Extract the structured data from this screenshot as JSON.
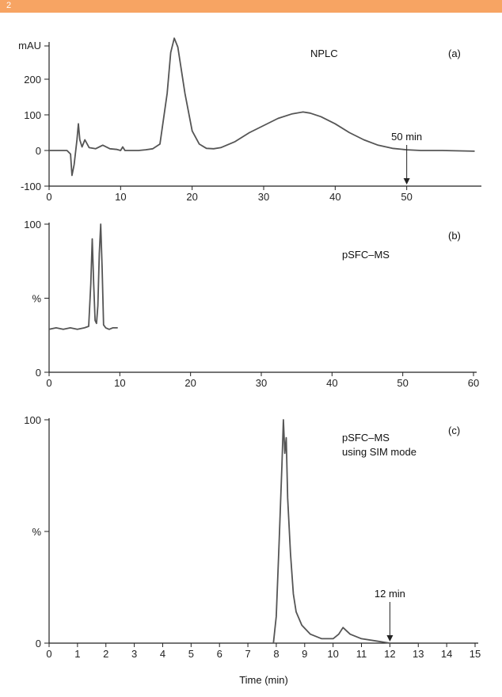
{
  "header_band": {
    "label": "2",
    "color": "#f7a463"
  },
  "x_axis_title": "Time (min)",
  "chart_data": [
    {
      "type": "line",
      "panel_label": "(a)",
      "title": "NPLC",
      "ylabel": "mAU",
      "xlim": [
        0,
        60
      ],
      "ylim": [
        -100,
        300
      ],
      "xticks": [
        0,
        10,
        20,
        30,
        40,
        50
      ],
      "yticks": [
        -100,
        0,
        100,
        200
      ],
      "annotation": {
        "text": "50 min",
        "x": 50
      },
      "color": "#555555",
      "series": [
        {
          "x": [
            0,
            2.5,
            3,
            3.2,
            3.5,
            3.7,
            3.9,
            4.1,
            4.3,
            4.6,
            5.0,
            5.6,
            6.5,
            7.5,
            8.5,
            9.5,
            10.0,
            10.3,
            10.6,
            11.5,
            12.5,
            13.5,
            14.5,
            15.5,
            16.5,
            17.0,
            17.5,
            18.0,
            19.0,
            20.0,
            21.0,
            22.0,
            23.0,
            24.0,
            26.0,
            28.0,
            30.0,
            32.0,
            34.0,
            35.5,
            36.5,
            38.0,
            40.0,
            42.0,
            44.0,
            46.0,
            48.0,
            50.0,
            52.0,
            55.0,
            59.5
          ],
          "y": [
            0,
            0,
            -10,
            -70,
            -40,
            -5,
            30,
            75,
            30,
            10,
            30,
            8,
            5,
            15,
            5,
            3,
            0,
            10,
            0,
            0,
            0,
            2,
            5,
            18,
            160,
            275,
            315,
            290,
            160,
            55,
            18,
            6,
            5,
            8,
            25,
            50,
            70,
            90,
            103,
            108,
            105,
            95,
            75,
            50,
            30,
            15,
            6,
            2,
            0,
            0,
            -2
          ]
        }
      ]
    },
    {
      "type": "line",
      "panel_label": "(b)",
      "title": "pSFC–MS",
      "ylabel": "%",
      "xlim": [
        0,
        60
      ],
      "ylim": [
        0,
        100
      ],
      "xticks": [
        0,
        10,
        20,
        30,
        40,
        50,
        60
      ],
      "yticks": [
        0,
        50,
        100
      ],
      "ytick_labels": [
        "0",
        "%",
        "100"
      ],
      "color": "#555555",
      "series": [
        {
          "x": [
            0,
            1,
            2,
            3,
            4,
            5,
            5.6,
            5.9,
            6.1,
            6.3,
            6.5,
            6.7,
            6.9,
            7.1,
            7.3,
            7.5,
            7.7,
            8.0,
            8.5,
            9.0,
            9.7
          ],
          "y": [
            29,
            30,
            29,
            30,
            29,
            30,
            31,
            60,
            90,
            60,
            35,
            33,
            45,
            80,
            100,
            70,
            32,
            30,
            29,
            30,
            30
          ]
        }
      ]
    },
    {
      "type": "line",
      "panel_label": "(c)",
      "title": "pSFC–MS",
      "subtitle": "using SIM mode",
      "ylabel": "%",
      "xlim": [
        0,
        15
      ],
      "ylim": [
        0,
        100
      ],
      "xticks": [
        0,
        1,
        2,
        3,
        4,
        5,
        6,
        7,
        8,
        9,
        10,
        11,
        12,
        13,
        14,
        15
      ],
      "yticks": [
        0,
        50,
        100
      ],
      "ytick_labels": [
        "0",
        "%",
        "100"
      ],
      "annotation": {
        "text": "12 min",
        "x": 12
      },
      "color": "#555555",
      "series": [
        {
          "x": [
            7.9,
            8.0,
            8.1,
            8.2,
            8.25,
            8.3,
            8.35,
            8.4,
            8.5,
            8.6,
            8.7,
            8.9,
            9.2,
            9.6,
            10.0,
            10.2,
            10.35,
            10.6,
            11.0,
            11.5,
            12.0,
            12.5,
            13.0
          ],
          "y": [
            0,
            12,
            45,
            80,
            100,
            85,
            92,
            65,
            40,
            22,
            14,
            8,
            4,
            2,
            2,
            4,
            7,
            4,
            2,
            1,
            0,
            0,
            0
          ]
        }
      ]
    }
  ]
}
